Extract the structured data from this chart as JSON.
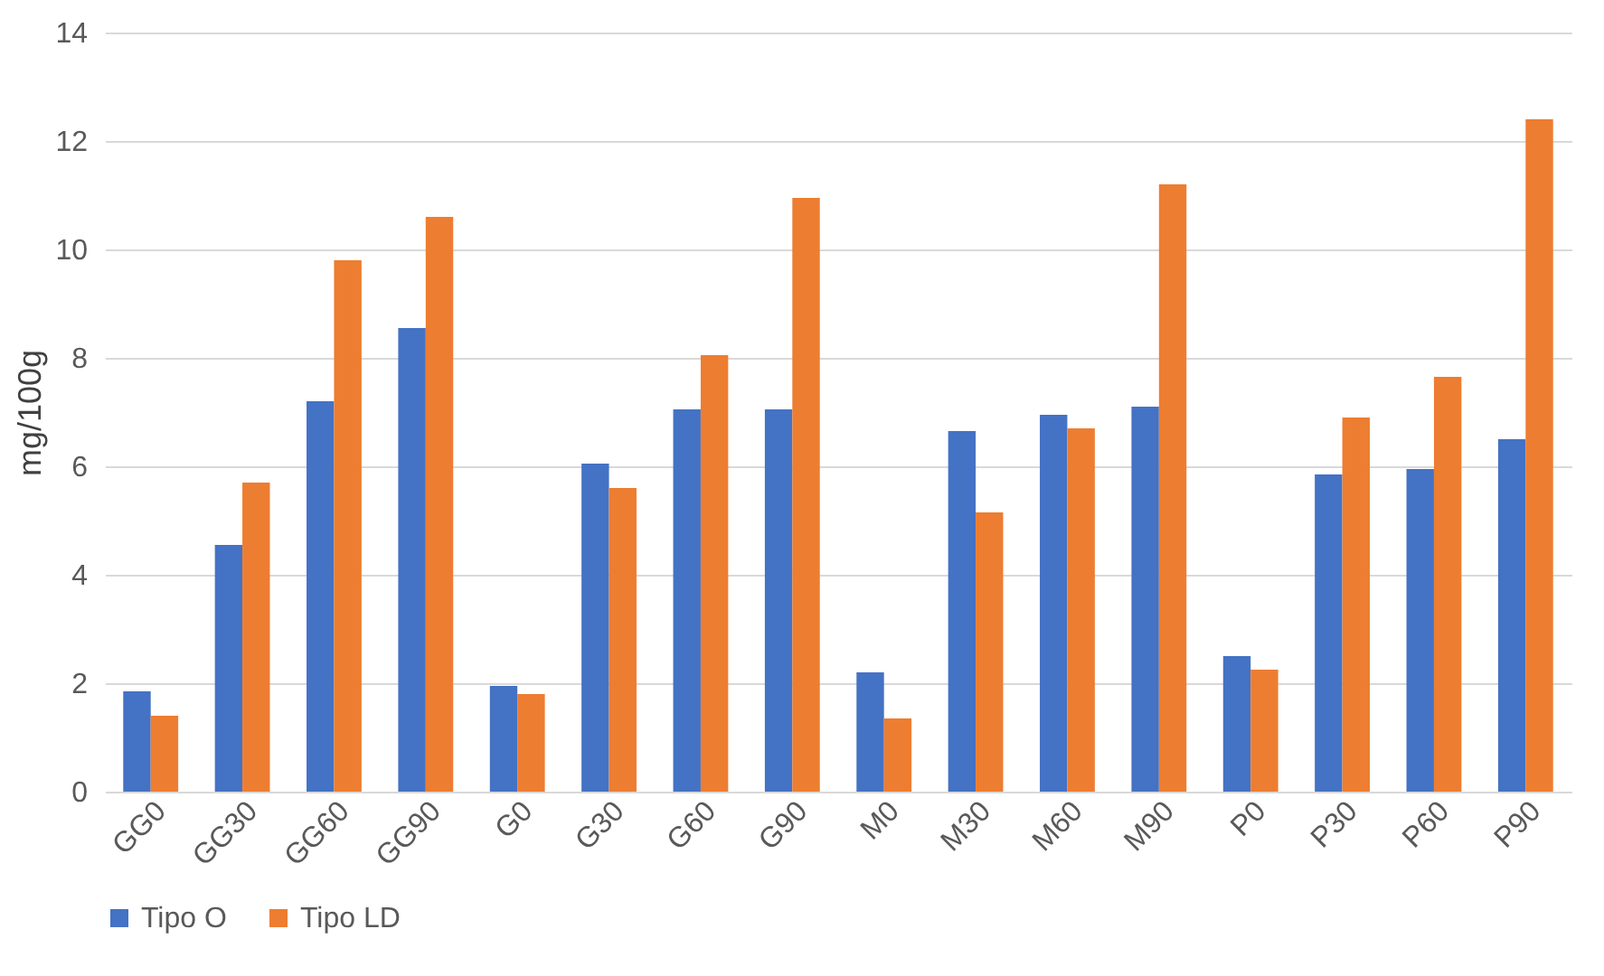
{
  "chart_data": {
    "type": "bar",
    "ylabel": "mg/100g",
    "categories": [
      "GG0",
      "GG30",
      "GG60",
      "GG90",
      "G0",
      "G30",
      "G60",
      "G90",
      "M0",
      "M30",
      "M60",
      "M90",
      "P0",
      "P30",
      "P60",
      "P90"
    ],
    "series": [
      {
        "name": "Tipo O",
        "color": "#4472c4",
        "values": [
          1.85,
          4.55,
          7.2,
          8.55,
          1.95,
          6.05,
          7.05,
          7.05,
          2.2,
          6.65,
          6.95,
          7.1,
          2.5,
          5.85,
          5.95,
          6.5
        ]
      },
      {
        "name": "Tipo LD",
        "color": "#ed7d31",
        "values": [
          1.4,
          5.7,
          9.8,
          10.6,
          1.8,
          5.6,
          8.05,
          10.95,
          1.35,
          5.15,
          6.7,
          11.2,
          2.25,
          6.9,
          7.65,
          12.4
        ]
      }
    ],
    "ylim": [
      0,
      14
    ],
    "yticks": [
      0,
      2,
      4,
      6,
      8,
      10,
      12,
      14
    ],
    "grid": "y",
    "legend": "bottom"
  }
}
